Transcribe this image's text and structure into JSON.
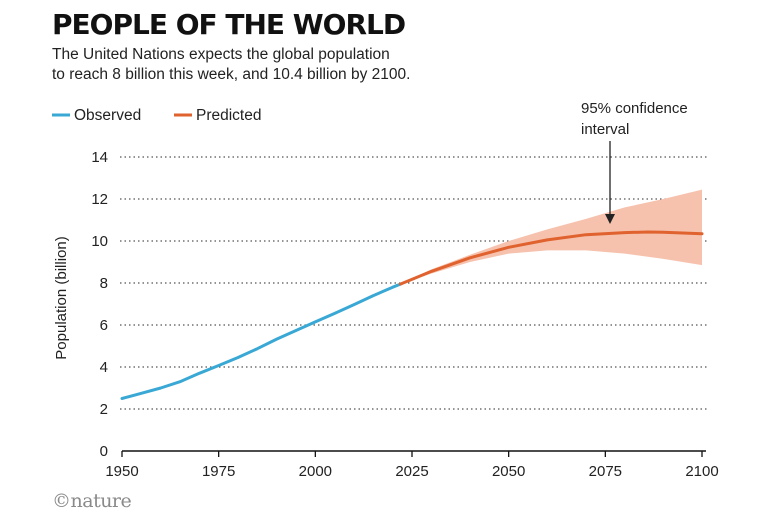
{
  "header": {
    "title": "PEOPLE OF THE WORLD",
    "subtitle_lines": [
      "The United Nations expects the global population",
      "to reach 8 billion this week, and 10.4 billion by 2100."
    ]
  },
  "credit": "©nature",
  "colors": {
    "observed": "#3aa8d4",
    "predicted": "#e0622e",
    "confidence_band": "#f6c2ad",
    "grid": "#555555"
  },
  "chart_data": {
    "type": "line",
    "title": "PEOPLE OF THE WORLD",
    "xlabel": "",
    "ylabel": "Population (billion)",
    "xlim": [
      1950,
      2100
    ],
    "ylim": [
      0,
      14
    ],
    "xticks": [
      1950,
      1975,
      2000,
      2025,
      2050,
      2075,
      2100
    ],
    "yticks": [
      0,
      2,
      4,
      6,
      8,
      10,
      12,
      14
    ],
    "grid": "horizontal dotted",
    "legend": {
      "position": "top-left",
      "entries": [
        "Observed",
        "Predicted"
      ]
    },
    "series": [
      {
        "name": "Observed",
        "x": [
          1950,
          1955,
          1960,
          1965,
          1970,
          1975,
          1980,
          1985,
          1990,
          1995,
          2000,
          2005,
          2010,
          2015,
          2020,
          2022
        ],
        "values": [
          2.5,
          2.75,
          3.0,
          3.3,
          3.7,
          4.07,
          4.45,
          4.87,
          5.33,
          5.74,
          6.15,
          6.55,
          6.97,
          7.4,
          7.8,
          7.95
        ]
      },
      {
        "name": "Predicted",
        "x": [
          2022,
          2030,
          2040,
          2050,
          2060,
          2070,
          2080,
          2086,
          2090,
          2100
        ],
        "values": [
          7.95,
          8.55,
          9.2,
          9.7,
          10.05,
          10.3,
          10.4,
          10.43,
          10.42,
          10.35
        ]
      }
    ],
    "confidence_interval": {
      "name": "95% confidence interval",
      "x": [
        2022,
        2030,
        2040,
        2050,
        2060,
        2070,
        2080,
        2090,
        2100
      ],
      "lower": [
        7.95,
        8.45,
        9.0,
        9.4,
        9.55,
        9.55,
        9.4,
        9.15,
        8.85
      ],
      "upper": [
        7.95,
        8.65,
        9.35,
        10.0,
        10.55,
        11.05,
        11.6,
        12.0,
        12.45
      ]
    },
    "annotations": [
      {
        "lines": [
          "95% confidence",
          "interval"
        ],
        "x": 2077,
        "y": 10.4
      }
    ]
  }
}
